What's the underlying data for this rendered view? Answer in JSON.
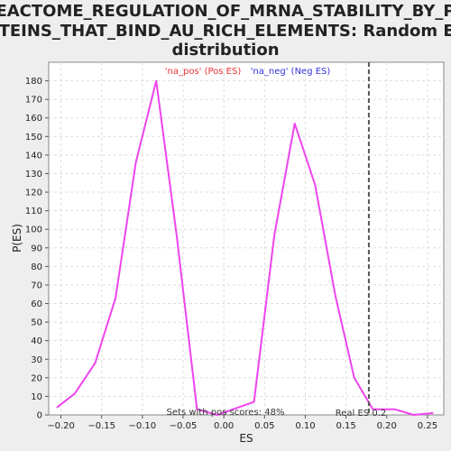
{
  "chart_data": {
    "type": "line",
    "title_lines": [
      "REACTOME_REGULATION_OF_MRNA_STABILITY_BY_PR",
      "OTEINS_THAT_BIND_AU_RICH_ELEMENTS: Random ES",
      "distribution"
    ],
    "xlabel": "ES",
    "ylabel": "P(ES)",
    "xlim": [
      -0.215,
      0.27
    ],
    "ylim": [
      0,
      190
    ],
    "x_ticks": [
      -0.2,
      -0.15,
      -0.1,
      -0.05,
      0.0,
      0.05,
      0.1,
      0.15,
      0.2,
      0.25
    ],
    "x_tick_labels": [
      "−0.20",
      "−0.15",
      "−0.10",
      "−0.05",
      "0.00",
      "0.05",
      "0.10",
      "0.15",
      "0.20",
      "0.25"
    ],
    "y_ticks": [
      0,
      10,
      20,
      30,
      40,
      50,
      60,
      70,
      80,
      90,
      100,
      110,
      120,
      130,
      140,
      150,
      160,
      170,
      180
    ],
    "grid": true,
    "series": [
      {
        "name": "",
        "color": "#ee44ee",
        "x": [
          -0.205,
          -0.183,
          -0.158,
          -0.133,
          -0.108,
          -0.083,
          -0.058,
          -0.033,
          -0.008,
          0.037,
          0.062,
          0.087,
          0.112,
          0.137,
          0.16,
          0.183,
          0.21,
          0.233,
          0.257
        ],
        "y": [
          4,
          11.5,
          28,
          63,
          136,
          180,
          97,
          3,
          0,
          7,
          97,
          157,
          124,
          64,
          20,
          3,
          3,
          0,
          1
        ]
      }
    ],
    "legend": {
      "placement": "top",
      "entries": [
        {
          "label": "'na_pos' (Pos ES)",
          "color": "#ee3333"
        },
        {
          "label": "'na_neg' (Neg ES)",
          "color": "#3333dd"
        }
      ]
    },
    "real_es": {
      "x": 0.178,
      "label": "Real ES 0.2"
    },
    "annotation": "Sets with pos scores: 48%"
  }
}
